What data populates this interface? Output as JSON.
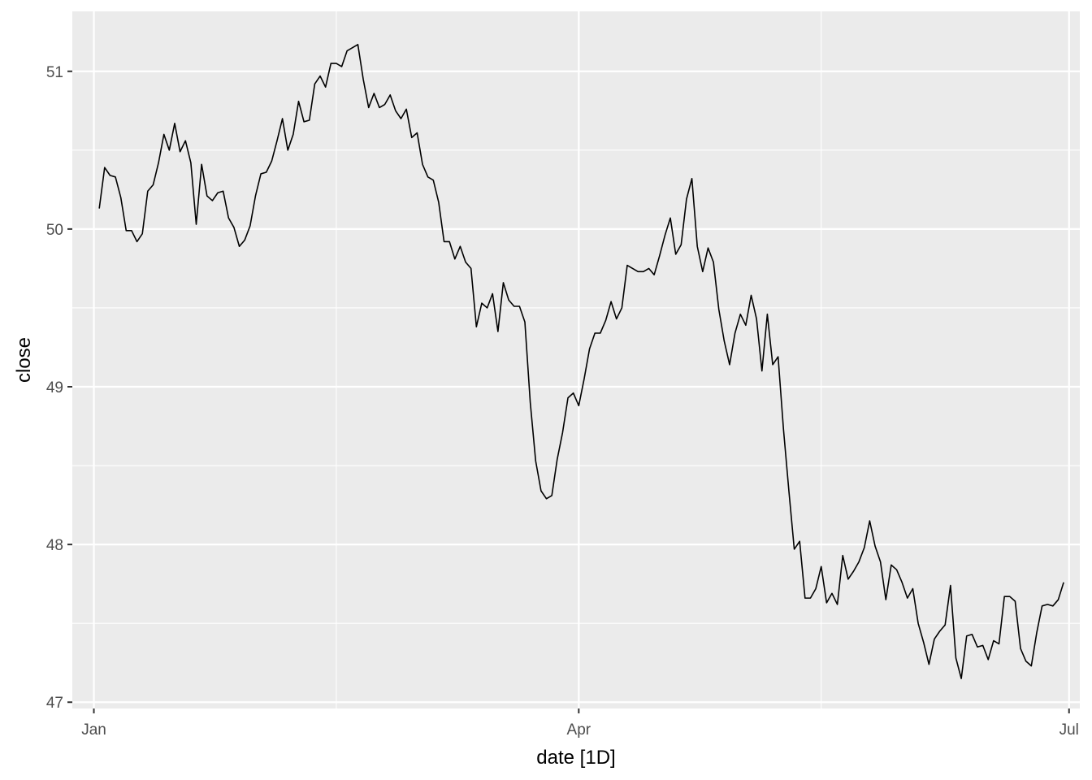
{
  "chart_data": {
    "type": "line",
    "xlabel": "date [1D]",
    "ylabel": "close",
    "xlim": [
      "2025-12-28",
      "2026-07-03"
    ],
    "ylim": [
      46.96,
      51.38
    ],
    "x_ticks": [
      {
        "date": "2026-01-01",
        "label": "Jan"
      },
      {
        "date": "2026-04-01",
        "label": "Apr"
      },
      {
        "date": "2026-07-01",
        "label": "Jul"
      }
    ],
    "x_minor_ticks": [
      "2026-02-15",
      "2026-05-16"
    ],
    "y_ticks": [
      47,
      48,
      49,
      50,
      51
    ],
    "y_minor_ticks": [
      47.5,
      48.5,
      49.5,
      50.5
    ],
    "grid": true,
    "background": "#ebebeb",
    "line_color": "#000000",
    "series": [
      {
        "x": [
          "2026-01-02",
          "2026-01-03",
          "2026-01-04",
          "2026-01-05",
          "2026-01-06",
          "2026-01-07",
          "2026-01-08",
          "2026-01-09",
          "2026-01-10",
          "2026-01-11",
          "2026-01-12",
          "2026-01-13",
          "2026-01-14",
          "2026-01-15",
          "2026-01-16",
          "2026-01-17",
          "2026-01-18",
          "2026-01-19",
          "2026-01-20",
          "2026-01-21",
          "2026-01-22",
          "2026-01-23",
          "2026-01-24",
          "2026-01-25",
          "2026-01-26",
          "2026-01-27",
          "2026-01-28",
          "2026-01-29",
          "2026-01-30",
          "2026-01-31",
          "2026-02-01",
          "2026-02-02",
          "2026-02-03",
          "2026-02-04",
          "2026-02-05",
          "2026-02-06",
          "2026-02-07",
          "2026-02-08",
          "2026-02-09",
          "2026-02-10",
          "2026-02-11",
          "2026-02-12",
          "2026-02-13",
          "2026-02-14",
          "2026-02-15",
          "2026-02-16",
          "2026-02-17",
          "2026-02-18",
          "2026-02-19",
          "2026-02-20",
          "2026-02-21",
          "2026-02-22",
          "2026-02-23",
          "2026-02-24",
          "2026-02-25",
          "2026-02-26",
          "2026-02-27",
          "2026-02-28",
          "2026-03-01",
          "2026-03-02",
          "2026-03-03",
          "2026-03-04",
          "2026-03-05",
          "2026-03-06",
          "2026-03-07",
          "2026-03-08",
          "2026-03-09",
          "2026-03-10",
          "2026-03-11",
          "2026-03-12",
          "2026-03-13",
          "2026-03-14",
          "2026-03-15",
          "2026-03-16",
          "2026-03-17",
          "2026-03-18",
          "2026-03-19",
          "2026-03-20",
          "2026-03-21",
          "2026-03-22",
          "2026-03-23",
          "2026-03-24",
          "2026-03-25",
          "2026-03-26",
          "2026-03-27",
          "2026-03-28",
          "2026-03-29",
          "2026-03-30",
          "2026-03-31",
          "2026-04-01",
          "2026-04-02",
          "2026-04-03",
          "2026-04-04",
          "2026-04-05",
          "2026-04-06",
          "2026-04-07",
          "2026-04-08",
          "2026-04-09",
          "2026-04-10",
          "2026-04-11",
          "2026-04-12",
          "2026-04-13",
          "2026-04-14",
          "2026-04-15",
          "2026-04-16",
          "2026-04-17",
          "2026-04-18",
          "2026-04-19",
          "2026-04-20",
          "2026-04-21",
          "2026-04-22",
          "2026-04-23",
          "2026-04-24",
          "2026-04-25",
          "2026-04-26",
          "2026-04-27",
          "2026-04-28",
          "2026-04-29",
          "2026-04-30",
          "2026-05-01",
          "2026-05-02",
          "2026-05-03",
          "2026-05-04",
          "2026-05-05",
          "2026-05-06",
          "2026-05-07",
          "2026-05-08",
          "2026-05-09",
          "2026-05-10",
          "2026-05-11",
          "2026-05-12",
          "2026-05-13",
          "2026-05-14",
          "2026-05-15",
          "2026-05-16",
          "2026-05-17",
          "2026-05-18",
          "2026-05-19",
          "2026-05-20",
          "2026-05-21",
          "2026-05-22",
          "2026-05-23",
          "2026-05-24",
          "2026-05-25",
          "2026-05-26",
          "2026-05-27",
          "2026-05-28",
          "2026-05-29",
          "2026-05-30",
          "2026-05-31",
          "2026-06-01",
          "2026-06-02",
          "2026-06-03",
          "2026-06-04",
          "2026-06-05",
          "2026-06-06",
          "2026-06-07",
          "2026-06-08",
          "2026-06-09",
          "2026-06-10",
          "2026-06-11",
          "2026-06-12",
          "2026-06-13",
          "2026-06-14",
          "2026-06-15",
          "2026-06-16",
          "2026-06-17",
          "2026-06-18",
          "2026-06-19",
          "2026-06-20",
          "2026-06-21",
          "2026-06-22",
          "2026-06-23",
          "2026-06-24",
          "2026-06-25",
          "2026-06-26",
          "2026-06-27",
          "2026-06-28",
          "2026-06-29",
          "2026-06-30"
        ],
        "y": [
          50.13,
          50.39,
          50.34,
          50.33,
          50.2,
          49.99,
          49.99,
          49.92,
          49.97,
          50.24,
          50.28,
          50.42,
          50.6,
          50.5,
          50.67,
          50.49,
          50.56,
          50.42,
          50.03,
          50.41,
          50.21,
          50.18,
          50.23,
          50.24,
          50.07,
          50.01,
          49.89,
          49.93,
          50.02,
          50.21,
          50.35,
          50.36,
          50.43,
          50.56,
          50.7,
          50.5,
          50.6,
          50.81,
          50.68,
          50.69,
          50.92,
          50.97,
          50.9,
          51.05,
          51.05,
          51.03,
          51.13,
          51.15,
          51.17,
          50.95,
          50.77,
          50.86,
          50.77,
          50.79,
          50.85,
          50.75,
          50.7,
          50.76,
          50.58,
          50.61,
          50.41,
          50.33,
          50.31,
          50.17,
          49.92,
          49.92,
          49.81,
          49.89,
          49.79,
          49.75,
          49.38,
          49.53,
          49.5,
          49.59,
          49.35,
          49.66,
          49.55,
          49.51,
          49.51,
          49.41,
          48.9,
          48.53,
          48.34,
          48.29,
          48.31,
          48.54,
          48.71,
          48.93,
          48.96,
          48.88,
          49.05,
          49.24,
          49.34,
          49.34,
          49.42,
          49.54,
          49.43,
          49.5,
          49.77,
          49.75,
          49.73,
          49.73,
          49.75,
          49.71,
          49.83,
          49.96,
          50.07,
          49.84,
          49.9,
          50.19,
          50.32,
          49.89,
          49.73,
          49.88,
          49.79,
          49.49,
          49.29,
          49.14,
          49.34,
          49.46,
          49.39,
          49.58,
          49.43,
          49.1,
          49.46,
          49.14,
          49.19,
          48.73,
          48.34,
          47.97,
          48.02,
          47.66,
          47.66,
          47.72,
          47.86,
          47.63,
          47.69,
          47.62,
          47.93,
          47.78,
          47.83,
          47.89,
          47.98,
          48.15,
          47.99,
          47.89,
          47.65,
          47.87,
          47.84,
          47.76,
          47.66,
          47.72,
          47.5,
          47.38,
          47.24,
          47.4,
          47.45,
          47.49,
          47.74,
          47.28,
          47.15,
          47.42,
          47.43,
          47.35,
          47.36,
          47.27,
          47.39,
          47.37,
          47.67,
          47.67,
          47.64,
          47.34,
          47.26,
          47.23,
          47.44,
          47.61,
          47.62,
          47.61,
          47.65,
          47.76
        ]
      }
    ]
  }
}
